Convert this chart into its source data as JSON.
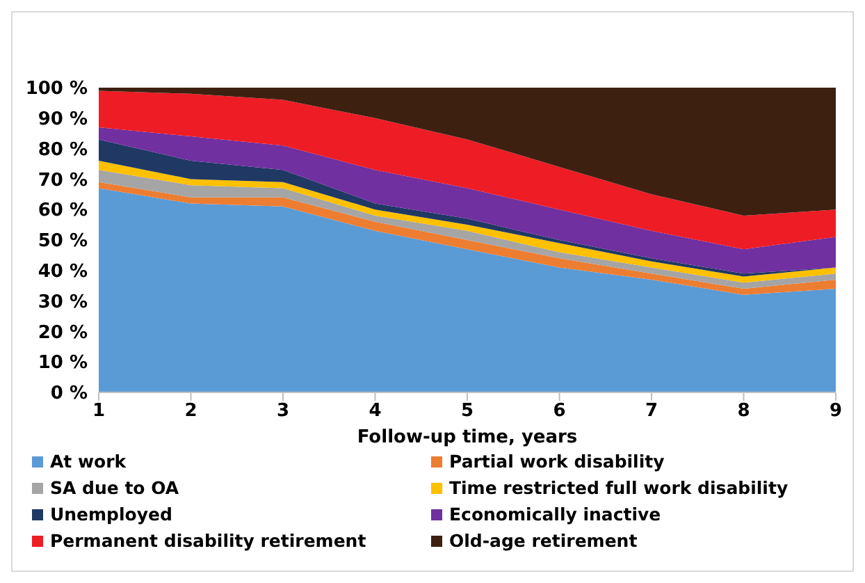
{
  "chart_data": {
    "type": "area",
    "stacked": true,
    "xlabel": "Follow-up time, years",
    "x": [
      1,
      2,
      3,
      4,
      5,
      6,
      7,
      8,
      9
    ],
    "xlim": [
      1,
      9
    ],
    "xticks": [
      1,
      2,
      3,
      4,
      5,
      6,
      7,
      8,
      9
    ],
    "ylim": [
      0,
      100
    ],
    "yticks": [
      {
        "value": 0,
        "label": "0 %"
      },
      {
        "value": 10,
        "label": "10 %"
      },
      {
        "value": 20,
        "label": "20 %"
      },
      {
        "value": 30,
        "label": "30 %"
      },
      {
        "value": 40,
        "label": "40 %"
      },
      {
        "value": 50,
        "label": "50 %"
      },
      {
        "value": 60,
        "label": "60 %"
      },
      {
        "value": 70,
        "label": "70 %"
      },
      {
        "value": 80,
        "label": "80 %"
      },
      {
        "value": 90,
        "label": "90 %"
      },
      {
        "value": 100,
        "label": "100 %"
      }
    ],
    "grid": false,
    "legend": "bottom",
    "series": [
      {
        "name": "At work",
        "color": "#5b9bd5",
        "values": [
          67,
          62,
          61,
          53,
          47,
          41,
          37,
          32,
          34
        ]
      },
      {
        "name": "Partial work disability",
        "color": "#ed7d31",
        "values": [
          2,
          2,
          3,
          3,
          3,
          3,
          2,
          2,
          3
        ]
      },
      {
        "name": "SA due to OA",
        "color": "#a5a5a5",
        "values": [
          4,
          4,
          3,
          2,
          3,
          2,
          2,
          2,
          2
        ]
      },
      {
        "name": "Time restricted full work disability",
        "color": "#ffc000",
        "values": [
          3,
          2,
          2,
          2,
          2,
          3,
          2,
          2,
          2
        ]
      },
      {
        "name": "Unemployed",
        "color": "#1f3864",
        "values": [
          7,
          6,
          4,
          2,
          2,
          1,
          1,
          1,
          0
        ]
      },
      {
        "name": "Economically inactive",
        "color": "#7030a0",
        "values": [
          4,
          8,
          8,
          11,
          10,
          10,
          9,
          8,
          10
        ]
      },
      {
        "name": "Permanent disability retirement",
        "color": "#ee1c25",
        "values": [
          12,
          14,
          15,
          17,
          16,
          14,
          12,
          11,
          9
        ]
      },
      {
        "name": "Old-age retirement",
        "color": "#3e2011",
        "values": [
          1,
          2,
          4,
          10,
          17,
          26,
          35,
          42,
          40
        ]
      }
    ]
  }
}
